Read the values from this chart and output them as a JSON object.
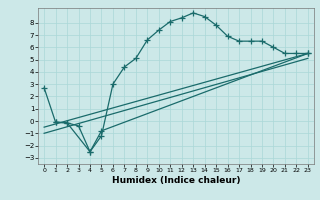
{
  "xlabel": "Humidex (Indice chaleur)",
  "bg_color": "#cce8e8",
  "line_color": "#1a6b6b",
  "xlim": [
    -0.5,
    23.5
  ],
  "ylim": [
    -3.5,
    9.2
  ],
  "xticks": [
    0,
    1,
    2,
    3,
    4,
    5,
    6,
    7,
    8,
    9,
    10,
    11,
    12,
    13,
    14,
    15,
    16,
    17,
    18,
    19,
    20,
    21,
    22,
    23
  ],
  "yticks": [
    -3,
    -2,
    -1,
    0,
    1,
    2,
    3,
    4,
    5,
    6,
    7,
    8
  ],
  "line1_x": [
    1,
    2,
    3,
    4,
    5,
    6,
    7,
    8,
    9,
    10,
    11,
    12,
    13,
    14,
    15,
    16,
    17,
    18,
    19,
    20,
    21,
    22,
    23
  ],
  "line1_y": [
    -0.1,
    -0.15,
    -0.4,
    -2.5,
    -1.2,
    3.0,
    4.4,
    5.1,
    6.6,
    7.4,
    8.1,
    8.4,
    8.8,
    8.5,
    7.8,
    6.9,
    6.5,
    6.5,
    6.5,
    6.0,
    5.5,
    5.5,
    5.5
  ],
  "line2_x": [
    0,
    1,
    2,
    4,
    5,
    23
  ],
  "line2_y": [
    2.7,
    -0.1,
    -0.15,
    -2.5,
    -0.8,
    5.5
  ],
  "line3_x": [
    0,
    23
  ],
  "line3_y": [
    -0.5,
    5.5
  ],
  "line4_x": [
    0,
    23
  ],
  "line4_y": [
    -1.0,
    5.1
  ],
  "grid_color": "#aad8d8",
  "xlabel_fontsize": 6.5,
  "tick_fontsize": 5.0
}
